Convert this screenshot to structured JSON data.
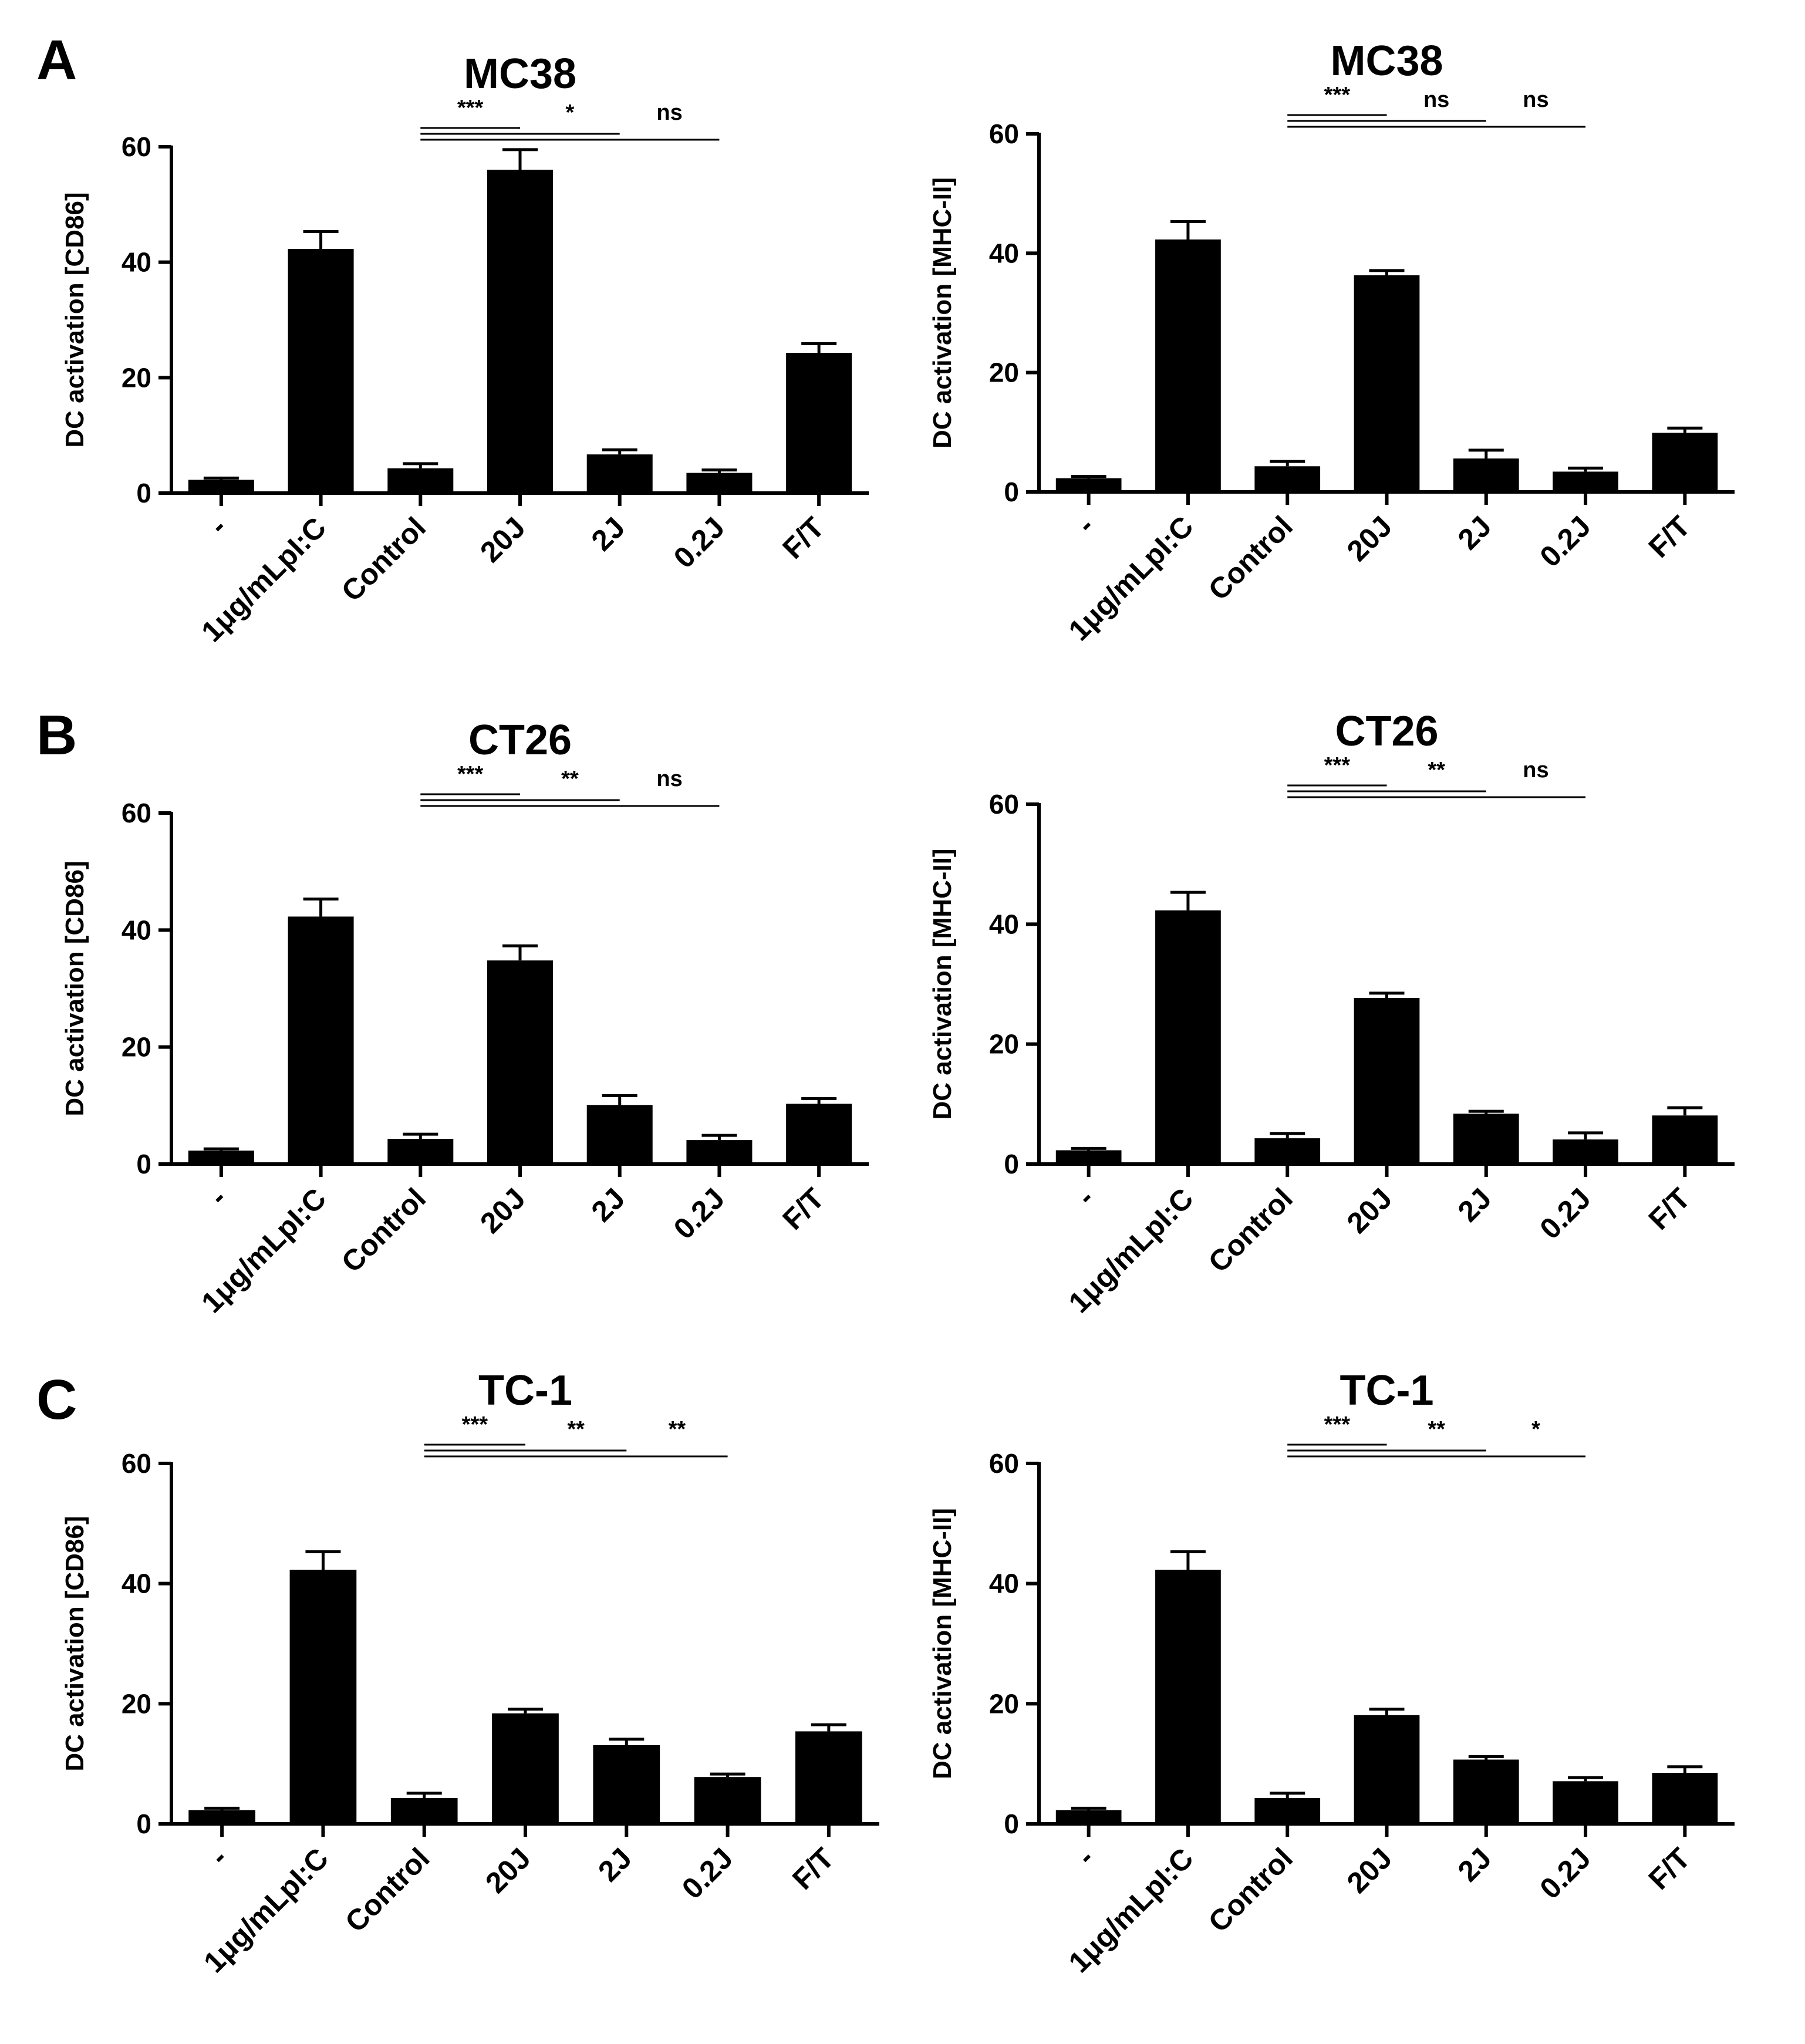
{
  "panels": [
    {
      "letter": "A"
    },
    {
      "letter": "B"
    },
    {
      "letter": "C"
    }
  ],
  "chart_data": [
    {
      "type": "bar",
      "panel": "A",
      "title": "MC38",
      "ylabel": "DC activation [CD86]",
      "ylim": [
        0,
        60
      ],
      "yticks": [
        0,
        20,
        40,
        60
      ],
      "categories": [
        "-",
        "1μg/mLpI:C",
        "Control",
        "20J",
        "2J",
        "0.2J",
        "F/T"
      ],
      "values": [
        2.3,
        42.3,
        4.3,
        56.0,
        6.7,
        3.5,
        24.3
      ],
      "errors": [
        0.3,
        3.0,
        0.8,
        3.5,
        0.8,
        0.5,
        1.6
      ],
      "significance": [
        {
          "from": "Control",
          "to": "20J",
          "label": "***"
        },
        {
          "from": "Control",
          "to": "2J",
          "label": "*"
        },
        {
          "from": "Control",
          "to": "0.2J",
          "label": "ns"
        }
      ]
    },
    {
      "type": "bar",
      "panel": "A",
      "title": "MC38",
      "ylabel": "DC activation [MHC-II]",
      "ylim": [
        0,
        60
      ],
      "yticks": [
        0,
        20,
        40,
        60
      ],
      "categories": [
        "-",
        "1μg/mLpI:C",
        "Control",
        "20J",
        "2J",
        "0.2J",
        "F/T"
      ],
      "values": [
        2.3,
        42.3,
        4.3,
        36.3,
        5.6,
        3.4,
        9.9
      ],
      "errors": [
        0.3,
        3.0,
        0.8,
        0.8,
        1.4,
        0.6,
        0.8
      ],
      "significance": [
        {
          "from": "Control",
          "to": "20J",
          "label": "***"
        },
        {
          "from": "Control",
          "to": "2J",
          "label": "ns"
        },
        {
          "from": "Control",
          "to": "0.2J",
          "label": "ns"
        }
      ]
    },
    {
      "type": "bar",
      "panel": "B",
      "title": "CT26",
      "ylabel": "DC activation [CD86]",
      "ylim": [
        0,
        60
      ],
      "yticks": [
        0,
        20,
        40,
        60
      ],
      "categories": [
        "-",
        "1μg/mLpI:C",
        "Control",
        "20J",
        "2J",
        "0.2J",
        "F/T"
      ],
      "values": [
        2.3,
        42.3,
        4.3,
        34.8,
        10.1,
        4.1,
        10.3
      ],
      "errors": [
        0.3,
        3.0,
        0.8,
        2.5,
        1.6,
        0.8,
        0.9
      ],
      "significance": [
        {
          "from": "Control",
          "to": "20J",
          "label": "***"
        },
        {
          "from": "Control",
          "to": "2J",
          "label": "**"
        },
        {
          "from": "Control",
          "to": "0.2J",
          "label": "ns"
        }
      ]
    },
    {
      "type": "bar",
      "panel": "B",
      "title": "CT26",
      "ylabel": "DC activation [MHC-II]",
      "ylim": [
        0,
        60
      ],
      "yticks": [
        0,
        20,
        40,
        60
      ],
      "categories": [
        "-",
        "1μg/mLpI:C",
        "Control",
        "20J",
        "2J",
        "0.2J",
        "F/T"
      ],
      "values": [
        2.3,
        42.3,
        4.3,
        27.7,
        8.4,
        4.1,
        8.1
      ],
      "errors": [
        0.3,
        3.0,
        0.8,
        0.8,
        0.4,
        1.1,
        1.3
      ],
      "significance": [
        {
          "from": "Control",
          "to": "20J",
          "label": "***"
        },
        {
          "from": "Control",
          "to": "2J",
          "label": "**"
        },
        {
          "from": "Control",
          "to": "0.2J",
          "label": "ns"
        }
      ]
    },
    {
      "type": "bar",
      "panel": "C",
      "title": "TC-1",
      "ylabel": "DC activation [CD86]",
      "ylim": [
        0,
        60
      ],
      "yticks": [
        0,
        20,
        40,
        60
      ],
      "categories": [
        "-",
        "1μg/mLpI:C",
        "Control",
        "20J",
        "2J",
        "0.2J",
        "F/T"
      ],
      "values": [
        2.3,
        42.3,
        4.3,
        18.4,
        13.1,
        7.8,
        15.4
      ],
      "errors": [
        0.3,
        3.0,
        0.8,
        0.7,
        1.0,
        0.5,
        1.1
      ],
      "significance": [
        {
          "from": "Control",
          "to": "20J",
          "label": "***"
        },
        {
          "from": "Control",
          "to": "2J",
          "label": "**"
        },
        {
          "from": "Control",
          "to": "0.2J",
          "label": "**"
        }
      ]
    },
    {
      "type": "bar",
      "panel": "C",
      "title": "TC-1",
      "ylabel": "DC activation [MHC-II]",
      "ylim": [
        0,
        60
      ],
      "yticks": [
        0,
        20,
        40,
        60
      ],
      "categories": [
        "-",
        "1μg/mLpI:C",
        "Control",
        "20J",
        "2J",
        "0.2J",
        "F/T"
      ],
      "values": [
        2.3,
        42.3,
        4.3,
        18.1,
        10.7,
        7.1,
        8.5
      ],
      "errors": [
        0.3,
        3.0,
        0.8,
        1.0,
        0.5,
        0.6,
        1.0
      ],
      "significance": [
        {
          "from": "Control",
          "to": "20J",
          "label": "***"
        },
        {
          "from": "Control",
          "to": "2J",
          "label": "**"
        },
        {
          "from": "Control",
          "to": "0.2J",
          "label": "*"
        }
      ]
    }
  ]
}
